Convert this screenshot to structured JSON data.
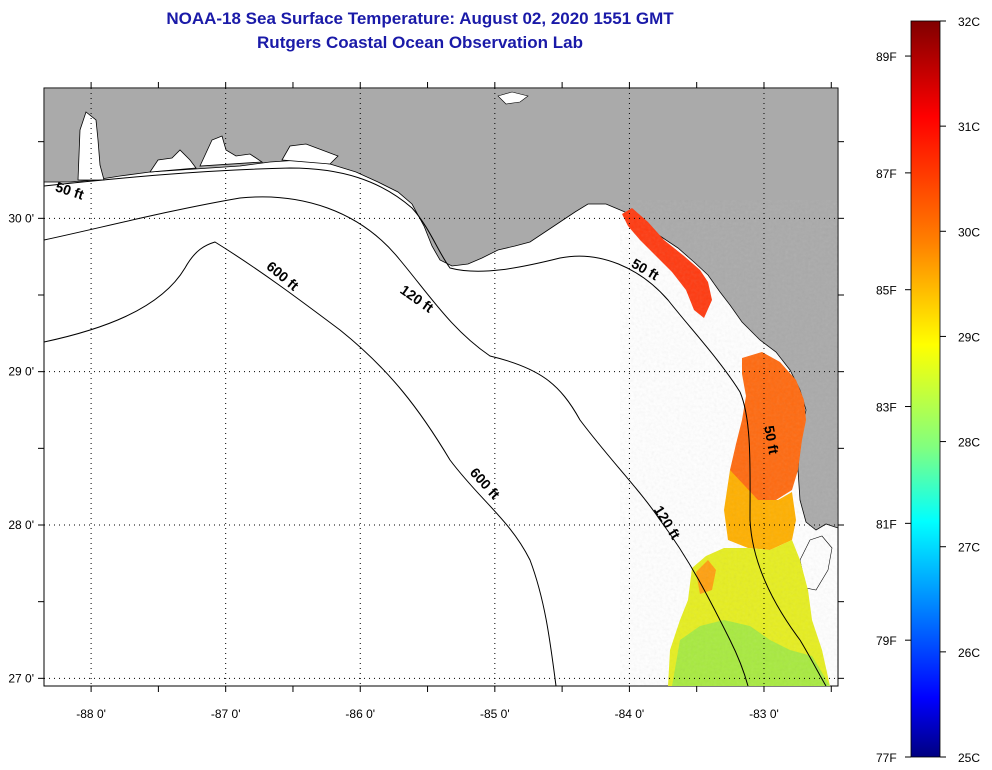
{
  "header": {
    "title": "NOAA-18 Sea Surface Temperature:  August 02, 2020 1551 GMT",
    "subtitle": "Rutgers Coastal Ocean Observation Lab"
  },
  "map": {
    "lon_range": [
      -88.35,
      -82.45
    ],
    "lat_range": [
      26.95,
      30.85
    ],
    "lon_ticks": [
      -88,
      -87,
      -86,
      -85,
      -84,
      -83
    ],
    "lat_ticks": [
      27,
      28,
      29,
      30
    ],
    "lon_labels": [
      "-88 0'",
      "-87 0'",
      "-86 0'",
      "-85 0'",
      "-84 0'",
      "-83 0'"
    ],
    "lat_labels": [
      "27 0'",
      "28 0'",
      "29 0'",
      "30 0'"
    ],
    "land_color": "#aaaaaa",
    "water_color": "#ffffff",
    "contours": [
      {
        "label": "50 ft",
        "labels_at": [
          [
            -88.17,
            30.15
          ],
          [
            -83.9,
            29.64
          ],
          [
            -82.98,
            28.55
          ]
        ]
      },
      {
        "label": "120 ft",
        "labels_at": [
          [
            -85.6,
            29.45
          ],
          [
            -83.75,
            28.0
          ]
        ]
      },
      {
        "label": "600 ft",
        "labels_at": [
          [
            -86.6,
            29.6
          ],
          [
            -85.1,
            28.25
          ]
        ]
      }
    ]
  },
  "colorbar": {
    "c_labels": [
      "32C",
      "31C",
      "30C",
      "29C",
      "28C",
      "27C",
      "26C",
      "25C"
    ],
    "f_labels": [
      "89F",
      "87F",
      "85F",
      "83F",
      "81F",
      "79F",
      "77F"
    ],
    "colors_top_to_bottom": [
      "#800000",
      "#ff0000",
      "#ff8000",
      "#ffff00",
      "#80ff80",
      "#00ffff",
      "#0080ff",
      "#0000ff",
      "#000080"
    ]
  }
}
